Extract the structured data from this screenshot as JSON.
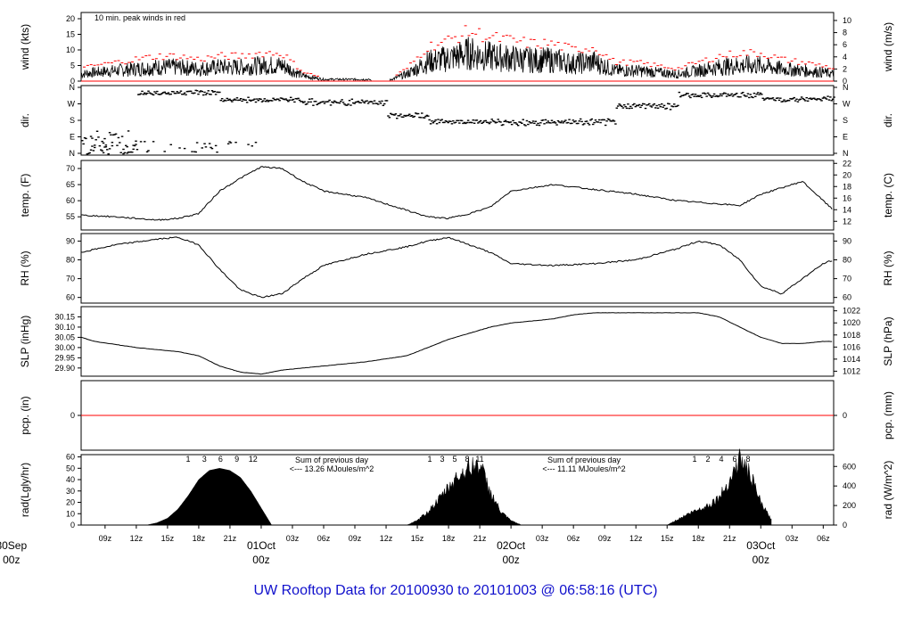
{
  "title": "UW Rooftop Data for 20100930  to  20101003 @ 06:58:16  (UTC)",
  "colors": {
    "title": "#1010cc",
    "date": "#cc0000",
    "annot": "#8800cc",
    "peak": "#ff0000",
    "zero_line": "#ff0000"
  },
  "time_axis": {
    "hour_ticks": [
      "09z",
      "12z",
      "15z",
      "18z",
      "21z",
      "01Oct",
      "03z",
      "06z",
      "09z",
      "12z",
      "15z",
      "18z",
      "21z",
      "02Oct",
      "03z",
      "06z",
      "09z",
      "12z",
      "15z",
      "18z",
      "21z",
      "03Oct",
      "03z",
      "06z"
    ],
    "date_labels": [
      {
        "hour": 0,
        "line1": "30Sep",
        "line2": "00z"
      },
      {
        "hour": 24,
        "line1": "01Oct",
        "line2": "00z"
      },
      {
        "hour": 48,
        "line1": "02Oct",
        "line2": "00z"
      },
      {
        "hour": 72,
        "line1": "03Oct",
        "line2": "00z"
      }
    ],
    "start_hour": 6.7,
    "end_hour": 79
  },
  "chart_data": [
    {
      "id": "wind",
      "type": "line",
      "ylabel_left": "wind (kts)",
      "ylabel_right": "wind (m/s)",
      "ylim": [
        0,
        22
      ],
      "left_ticks": [
        "0",
        "5",
        "10",
        "15",
        "20"
      ],
      "right_ticks": [
        "0",
        "2",
        "4",
        "6",
        "8",
        "10"
      ],
      "annotation": "10 min. peak winds in red",
      "series": [
        {
          "name": "10 min. peak winds in red",
          "x": [
            6.7,
            8,
            10,
            12,
            14,
            16,
            18,
            20,
            22,
            24,
            26,
            28,
            30,
            32,
            34,
            36,
            38,
            40,
            42,
            44,
            46,
            48,
            50,
            52,
            54,
            56,
            58,
            60,
            62,
            64,
            66,
            68,
            70,
            72,
            74,
            76,
            78,
            79
          ],
          "y": [
            4,
            5,
            6,
            7,
            8,
            8,
            7,
            8,
            8,
            9,
            9,
            3,
            1,
            1,
            1,
            0,
            4,
            11,
            13,
            16,
            14,
            13,
            12,
            12,
            10,
            11,
            6,
            6,
            5,
            4,
            6,
            8,
            9,
            9,
            7,
            6,
            5,
            4
          ]
        }
      ]
    },
    {
      "id": "dir",
      "type": "scatter",
      "ylabel_left": "dir.",
      "ylabel_right": "dir.",
      "left_ticks": [
        "N",
        "E",
        "S",
        "W",
        "N"
      ],
      "right_ticks": [
        "N",
        "E",
        "S",
        "W",
        "N"
      ],
      "series": []
    },
    {
      "id": "temp",
      "type": "line",
      "ylabel_left": "temp. (F)",
      "ylabel_right": "temp. (C)",
      "ylim": [
        50.9,
        72.5
      ],
      "left_ticks": [
        "55",
        "60",
        "65",
        "70"
      ],
      "right_ticks": [
        "12",
        "14",
        "16",
        "18",
        "20",
        "22"
      ],
      "series": [
        {
          "x": [
            6.7,
            10,
            14,
            16,
            18,
            20,
            22,
            24,
            26,
            28,
            30,
            34,
            38,
            40,
            42,
            44,
            46,
            48,
            52,
            56,
            60,
            64,
            68,
            70,
            72,
            74,
            76,
            78,
            79
          ],
          "y": [
            55.5,
            55,
            54,
            54.5,
            56,
            63,
            67,
            70.5,
            70,
            66,
            63,
            61,
            57,
            55,
            54.5,
            56,
            58,
            63,
            65,
            63.5,
            62,
            60,
            59,
            58.5,
            62,
            64,
            66,
            60,
            57
          ]
        }
      ]
    },
    {
      "id": "rh",
      "type": "line",
      "ylabel_left": "RH (%)",
      "ylabel_right": "RH (%)",
      "ylim": [
        57,
        94
      ],
      "left_ticks": [
        "60",
        "70",
        "80",
        "90"
      ],
      "right_ticks": [
        "60",
        "70",
        "80",
        "90"
      ],
      "series": [
        {
          "x": [
            6.7,
            10,
            14,
            16,
            18,
            20,
            22,
            24,
            26,
            28,
            30,
            34,
            38,
            40,
            42,
            44,
            46,
            48,
            52,
            56,
            60,
            64,
            66,
            68,
            70,
            72,
            74,
            76,
            78,
            79
          ],
          "y": [
            84,
            88,
            91,
            92,
            88,
            75,
            64,
            60,
            62,
            70,
            77,
            83,
            87,
            90,
            92,
            88,
            84,
            78,
            77,
            78,
            80,
            86,
            90,
            88,
            80,
            66,
            62,
            70,
            78,
            80
          ]
        }
      ]
    },
    {
      "id": "slp",
      "type": "line",
      "ylabel_left": "SLP (inHg)",
      "ylabel_right": "SLP (hPa)",
      "ylim": [
        29.86,
        30.2
      ],
      "left_ticks": [
        "29.90",
        "29.95",
        "30.00",
        "30.05",
        "30.10",
        "30.15"
      ],
      "right_ticks": [
        "1012",
        "1014",
        "1016",
        "1018",
        "1020",
        "1022"
      ],
      "series": [
        {
          "x": [
            6.7,
            8,
            12,
            16,
            18,
            20,
            22,
            24,
            25,
            26,
            28,
            30,
            34,
            38,
            40,
            42,
            46,
            48,
            50,
            52,
            54,
            56,
            58,
            60,
            62,
            64,
            66,
            68,
            70,
            72,
            74,
            76,
            78,
            79
          ],
          "y": [
            30.05,
            30.03,
            30.0,
            29.98,
            29.96,
            29.91,
            29.88,
            29.87,
            29.88,
            29.89,
            29.9,
            29.91,
            29.93,
            29.96,
            30.0,
            30.04,
            30.1,
            30.12,
            30.13,
            30.14,
            30.16,
            30.17,
            30.17,
            30.17,
            30.17,
            30.17,
            30.17,
            30.15,
            30.1,
            30.05,
            30.02,
            30.02,
            30.03,
            30.03
          ]
        }
      ]
    },
    {
      "id": "pcp",
      "type": "line",
      "ylabel_left": "pcp. (in)",
      "ylabel_right": "pcp. (mm)",
      "ylim": [
        -0.5,
        0.5
      ],
      "left_ticks": [
        "0"
      ],
      "right_ticks": [
        "0"
      ],
      "series": [
        {
          "x": [
            6.7,
            79
          ],
          "y": [
            0,
            0
          ]
        }
      ]
    },
    {
      "id": "rad",
      "type": "area",
      "ylabel_left": "rad(Lgly/hr)",
      "ylabel_right": "rad (W/m^2)",
      "ylim": [
        0,
        62
      ],
      "left_ticks": [
        "0",
        "10",
        "20",
        "30",
        "40",
        "50",
        "60"
      ],
      "right_ticks": [
        "0",
        "200",
        "400",
        "600"
      ],
      "hour_marks": [
        {
          "day": 0,
          "labels": [
            "1",
            "3",
            "6",
            "9",
            "12"
          ]
        },
        {
          "day": 1,
          "labels": [
            "1",
            "3",
            "5",
            "8",
            "11"
          ]
        },
        {
          "day": 2,
          "labels": [
            "1",
            "2",
            "4",
            "6",
            "8"
          ]
        }
      ],
      "sum_notes": [
        {
          "line1": "Sum of previous day",
          "line2": "<--- 13.26 MJoules/m^2"
        },
        {
          "line1": "Sum of previous day",
          "line2": "<--- 11.11 MJoules/m^2"
        }
      ],
      "series": [
        {
          "x": [
            13,
            14,
            15,
            16,
            17,
            18,
            19,
            20,
            21,
            22,
            23,
            24,
            25,
            38,
            39,
            40,
            41,
            42,
            43,
            44,
            45,
            46,
            47,
            48,
            49,
            63,
            64,
            65,
            66,
            67,
            68,
            69,
            70,
            71,
            72,
            73
          ],
          "y": [
            0,
            2,
            6,
            14,
            26,
            40,
            48,
            50,
            48,
            42,
            30,
            15,
            0,
            0,
            4,
            12,
            22,
            34,
            45,
            52,
            55,
            30,
            12,
            4,
            0,
            0,
            5,
            10,
            14,
            18,
            25,
            40,
            60,
            45,
            20,
            5
          ]
        }
      ]
    }
  ]
}
